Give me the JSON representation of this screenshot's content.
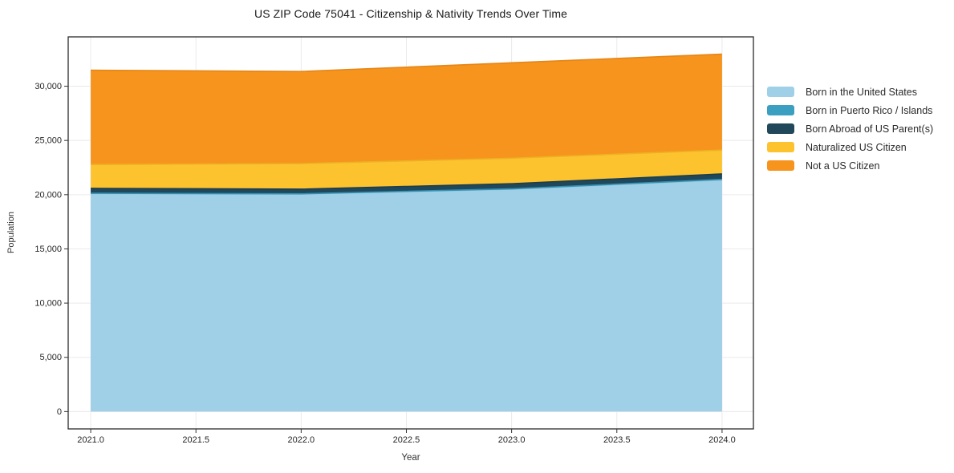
{
  "window": {
    "background": "#ffffff"
  },
  "chart_data": {
    "type": "area",
    "stacked": true,
    "title": "US ZIP Code 75041 - Citizenship & Nativity Trends Over Time",
    "xlabel": "Year",
    "ylabel": "Population",
    "x": [
      2021,
      2022,
      2023,
      2024
    ],
    "series": [
      {
        "name": "Born in the United States",
        "fill": "#9fd0e8",
        "line": "#8cc0da",
        "values": [
          20100,
          20050,
          20500,
          21350
        ]
      },
      {
        "name": "Born in Puerto Rico / Islands",
        "fill": "#3a9fc1",
        "line": "#3390b1",
        "values": [
          30,
          30,
          40,
          60
        ]
      },
      {
        "name": "Born Abroad of US Parent(s)",
        "fill": "#20485a",
        "line": "#1b3e4e",
        "values": [
          450,
          430,
          470,
          500
        ]
      },
      {
        "name": "Naturalized US Citizen",
        "fill": "#fdc32f",
        "line": "#ecb224",
        "values": [
          2200,
          2350,
          2350,
          2200
        ]
      },
      {
        "name": "Not a US Citizen",
        "fill": "#f7941d",
        "line": "#e58615",
        "values": [
          8700,
          8500,
          8800,
          8850
        ]
      }
    ],
    "totals_by_year": [
      31480,
      31360,
      32160,
      32960
    ],
    "xlim": [
      2020.893,
      2024.149
    ],
    "ylim": [
      -1600,
      34550
    ],
    "xticks": {
      "values": [
        2021.0,
        2021.5,
        2022.0,
        2022.5,
        2023.0,
        2023.5,
        2024.0
      ],
      "labels": [
        "2021.0",
        "2021.5",
        "2022.0",
        "2022.5",
        "2023.0",
        "2023.5",
        "2024.0"
      ]
    },
    "yticks": {
      "values": [
        0,
        5000,
        10000,
        15000,
        20000,
        25000,
        30000
      ],
      "labels": [
        "0",
        "5,000",
        "10,000",
        "15,000",
        "20,000",
        "25,000",
        "30,000"
      ]
    },
    "grid": true,
    "legend_position": "right-outside"
  },
  "colors": {
    "grid": "#eaeaea",
    "axis_line": "#2b2b2b",
    "tick_mark": "#333333",
    "tick_text": "#262626",
    "title_text": "#1a1a1a",
    "label_text": "#333333"
  }
}
